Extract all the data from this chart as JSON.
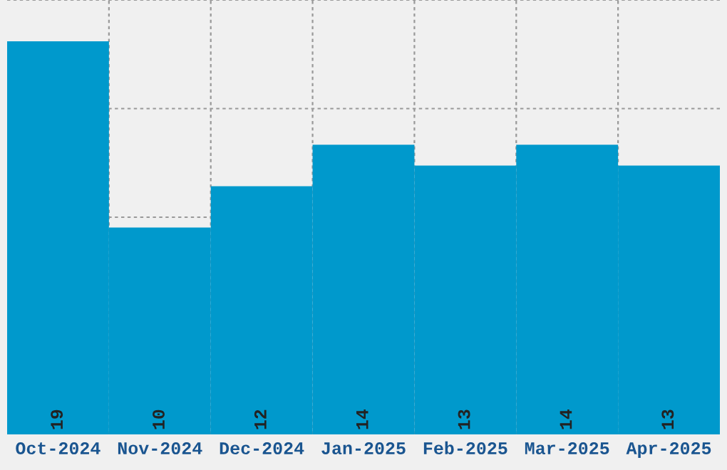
{
  "chart_data": {
    "type": "bar",
    "categories": [
      "Oct-2024",
      "Nov-2024",
      "Dec-2024",
      "Jan-2025",
      "Feb-2025",
      "Mar-2025",
      "Apr-2025"
    ],
    "values": [
      19,
      10,
      12,
      14,
      13,
      14,
      13
    ],
    "color": "#0099cc",
    "data_labels": true,
    "ylim": [
      0,
      21
    ],
    "tick_labels": "x",
    "grid": true
  }
}
